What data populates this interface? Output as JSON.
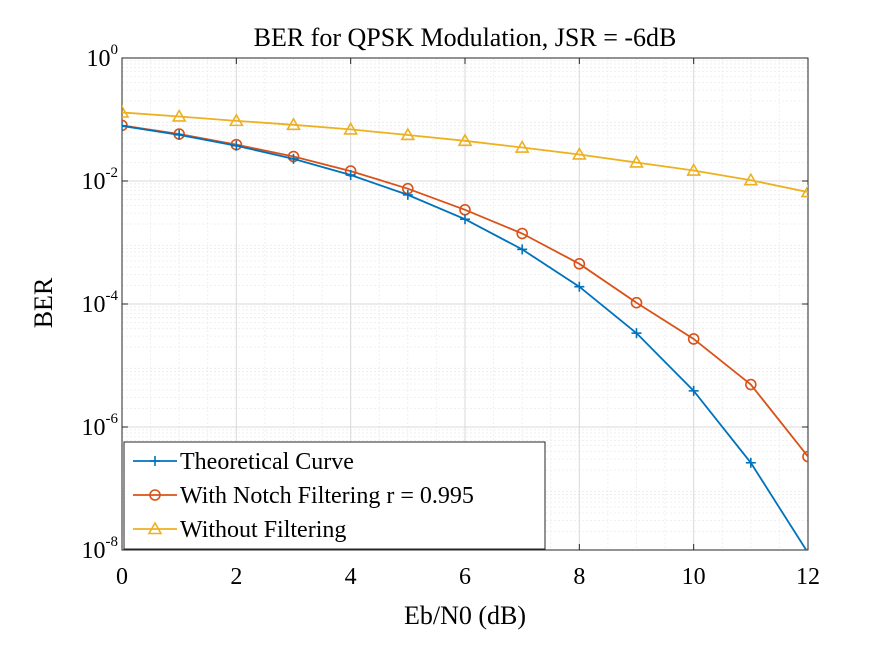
{
  "chart_data": {
    "type": "line",
    "title": "BER for QPSK Modulation, JSR = -6dB",
    "xlabel": "Eb/N0 (dB)",
    "ylabel": "BER",
    "yscale": "log",
    "xlim": [
      0,
      12
    ],
    "ylim": [
      1e-08,
      1
    ],
    "xticks": [
      0,
      2,
      4,
      6,
      8,
      10,
      12
    ],
    "xtick_labels": [
      "0",
      "2",
      "4",
      "6",
      "8",
      "10",
      "12"
    ],
    "yticks": [
      1e-08,
      1e-06,
      0.0001,
      0.01,
      1
    ],
    "ytick_labels": [
      {
        "base": "10",
        "exp": "-8"
      },
      {
        "base": "10",
        "exp": "-6"
      },
      {
        "base": "10",
        "exp": "-4"
      },
      {
        "base": "10",
        "exp": "-2"
      },
      {
        "base": "10",
        "exp": "0"
      }
    ],
    "grid": true,
    "legend_position": "bottom-left",
    "x": [
      0,
      1,
      2,
      3,
      4,
      5,
      6,
      7,
      8,
      9,
      10,
      11,
      12
    ],
    "series": [
      {
        "name": "Theoretical Curve",
        "color": "#0072BD",
        "marker": "plus",
        "values": [
          0.0786,
          0.0563,
          0.0375,
          0.0229,
          0.0125,
          0.00595,
          0.00239,
          0.000773,
          0.000191,
          3.36e-05,
          3.87e-06,
          2.62e-07,
          9e-09
        ]
      },
      {
        "name": "With Notch Filtering r = 0.995",
        "color": "#D95319",
        "marker": "circle",
        "values": [
          0.08,
          0.058,
          0.039,
          0.025,
          0.0145,
          0.0075,
          0.0034,
          0.0014,
          0.00045,
          0.000105,
          2.7e-05,
          4.9e-06,
          3.3e-07
        ]
      },
      {
        "name": "Without Filtering",
        "color": "#EDB120",
        "marker": "triangle",
        "values": [
          0.13,
          0.112,
          0.095,
          0.082,
          0.069,
          0.056,
          0.045,
          0.035,
          0.027,
          0.02,
          0.0148,
          0.0103,
          0.0066
        ]
      }
    ]
  }
}
